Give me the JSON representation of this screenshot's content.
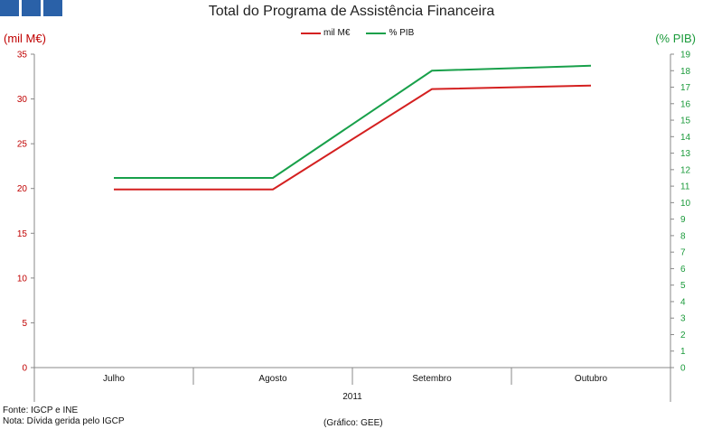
{
  "header": {
    "title": "Total do Programa de Assistência Financeira"
  },
  "axes": {
    "left_unit": "(mil M€)",
    "right_unit": "(% PIB)",
    "year_label": "2011"
  },
  "legend": [
    {
      "label": "mil M€",
      "color": "#d42020"
    },
    {
      "label": "% PIB",
      "color": "#18a04a"
    }
  ],
  "footer": {
    "source": "Fonte: IGCP e INE",
    "note": "Nota: Dívida gerida pelo IGCP",
    "credit": "(Gráfico: GEE)"
  },
  "chart_data": {
    "type": "line",
    "title": "Total do Programa de Assistência Financeira",
    "categories": [
      "Julho",
      "Agosto",
      "Setembro",
      "Outubro"
    ],
    "series": [
      {
        "name": "mil M€",
        "axis": "left",
        "color": "#d42020",
        "values": [
          19.9,
          19.9,
          31.1,
          31.5
        ]
      },
      {
        "name": "% PIB",
        "axis": "right",
        "color": "#18a04a",
        "values": [
          11.5,
          11.5,
          18.0,
          18.3
        ]
      }
    ],
    "y_left": {
      "label": "(mil M€)",
      "ylim": [
        0,
        35
      ],
      "ticks": [
        0,
        5,
        10,
        15,
        20,
        25,
        30,
        35
      ]
    },
    "y_right": {
      "label": "(% PIB)",
      "ylim": [
        0,
        19
      ],
      "ticks": [
        0,
        1,
        2,
        3,
        4,
        5,
        6,
        7,
        8,
        9,
        10,
        11,
        12,
        13,
        14,
        15,
        16,
        17,
        18,
        19
      ]
    },
    "grid": false,
    "legend_position": "top-center"
  }
}
